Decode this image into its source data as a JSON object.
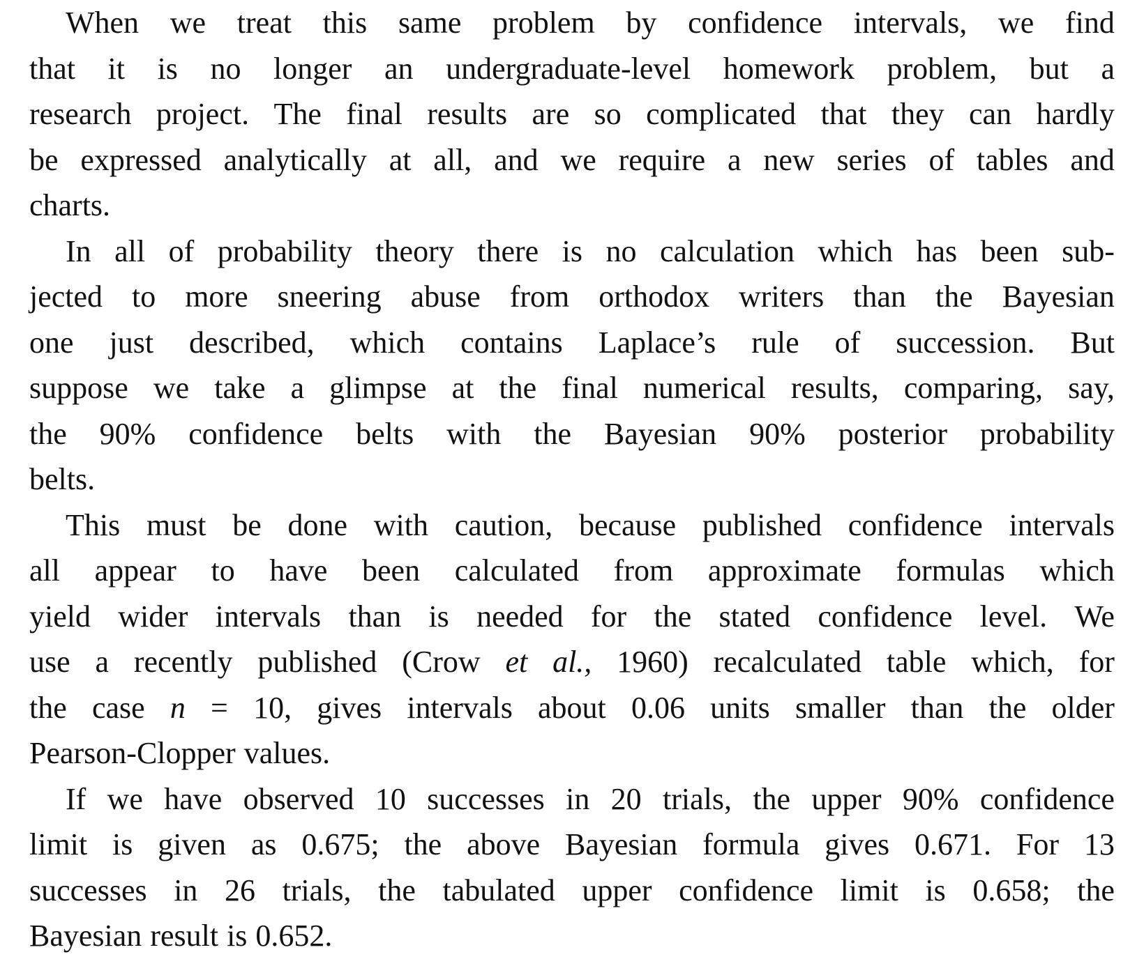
{
  "paragraphs": [
    {
      "lines": [
        "When we treat this same problem by confidence intervals, we find",
        "that it is no longer an undergraduate-level homework problem, but a",
        "research project. The final results are so complicated that they can hardly",
        "be expressed analytically at all, and we require a new series of tables and",
        "charts."
      ]
    },
    {
      "lines": [
        "In all of probability theory there is no calculation which has been sub-",
        "jected to more sneering abuse from orthodox writers than the Bayesian",
        "one just described, which contains Laplace’s rule of succession. But",
        "suppose we take a glimpse at the final numerical results, comparing, say,",
        "the 90% confidence belts with the Bayesian 90% posterior probability",
        "belts."
      ]
    },
    {
      "lines": [
        "This must be done with caution, because published confidence intervals",
        "all appear to have been calculated from approximate formulas which",
        "yield wider intervals than is needed for the stated confidence level. We",
        "use a recently published (Crow et al., 1960) recalculated table which, for",
        "the case n = 10, gives intervals about 0.06 units smaller than the older",
        "Pearson-Clopper values."
      ]
    },
    {
      "lines": [
        "If we have observed 10 successes in 20 trials, the upper 90% confidence",
        "limit is given as 0.675; the above Bayesian formula gives 0.671. For 13",
        "successes in 26 trials, the tabulated upper confidence limit is 0.658; the",
        "Bayesian result is 0.652."
      ]
    }
  ]
}
